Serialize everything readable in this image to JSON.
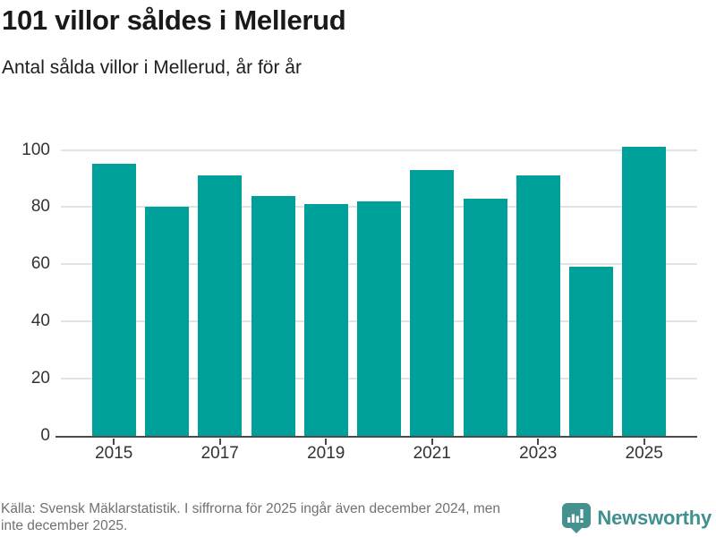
{
  "header": {
    "title": "101 villor såldes i Mellerud",
    "subtitle": "Antal sålda villor i Mellerud, år för år"
  },
  "chart_data": {
    "type": "bar",
    "title": "101 villor såldes i Mellerud",
    "subtitle": "Antal sålda villor i Mellerud, år för år",
    "categories": [
      "2015",
      "2016",
      "2017",
      "2018",
      "2019",
      "2020",
      "2021",
      "2022",
      "2023",
      "2024",
      "2025"
    ],
    "values": [
      95,
      80,
      91,
      84,
      81,
      82,
      93,
      83,
      91,
      59,
      101
    ],
    "xlabel": "",
    "ylabel": "",
    "ylim": [
      0,
      100
    ],
    "yticks": [
      0,
      20,
      40,
      60,
      80,
      100
    ],
    "xtick_labels": [
      "2015",
      "2017",
      "2019",
      "2021",
      "2023",
      "2025"
    ],
    "grid": "horizontal-light",
    "legend": "none",
    "bar_color": "#00a09a"
  },
  "colors": {
    "bar": "#00a09a",
    "axis": "#4a4a4a",
    "gridline": "#e2e3e3",
    "tick_label": "#333333",
    "title_text": "#191919",
    "source_text": "#6e7272",
    "brand_teal": "#3f908e"
  },
  "footer": {
    "line1": "Källa: Svensk Mäklarstatistik. I siffrorna för 2025 ingår även december 2024, men",
    "line2": "inte december 2025.",
    "brand": "Newsworthy"
  }
}
